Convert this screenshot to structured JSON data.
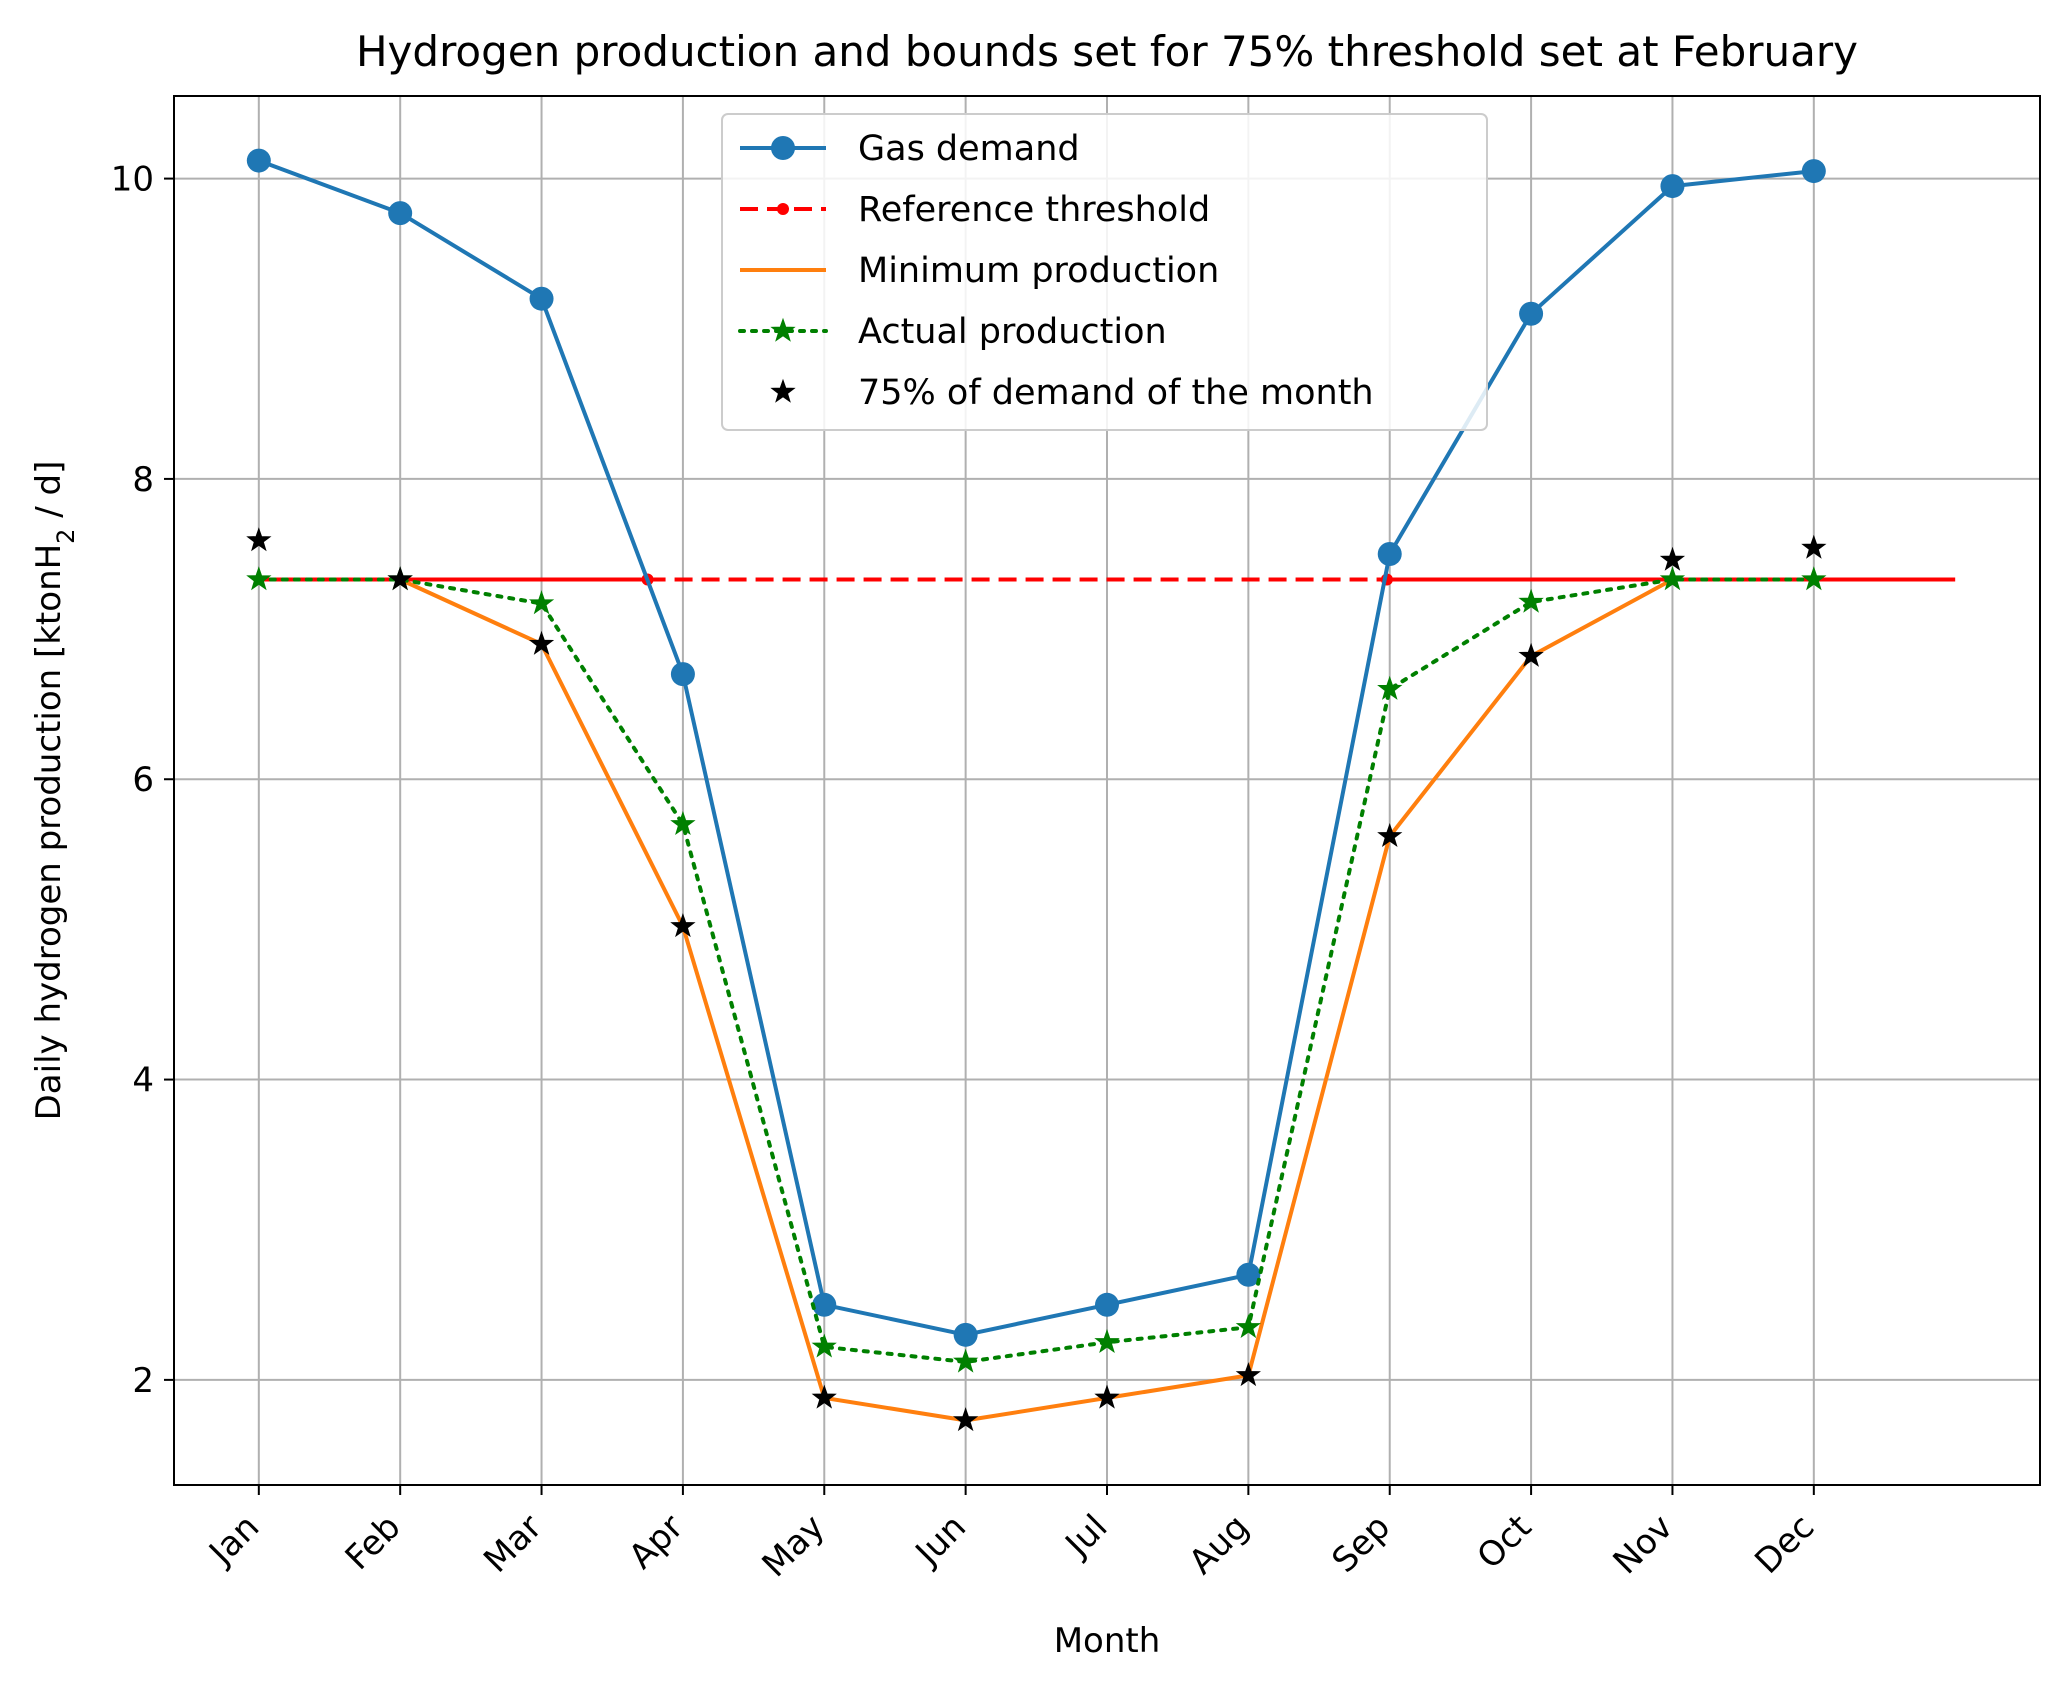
{
  "chart_data": {
    "type": "line",
    "title": "Hydrogen production and bounds set for 75% threshold set at February",
    "xlabel": "Month",
    "ylabel": {
      "prefix": "Daily hydrogen production [ktonH",
      "subscript": "2",
      "suffix": " / d]"
    },
    "categories": [
      "Jan",
      "Feb",
      "Mar",
      "Apr",
      "May",
      "Jun",
      "Jul",
      "Aug",
      "Sep",
      "Oct",
      "Nov",
      "Dec"
    ],
    "xlim": [
      -0.6,
      12.6
    ],
    "ylim": [
      1.3,
      10.55
    ],
    "yticks": [
      2,
      4,
      6,
      8,
      10
    ],
    "grid": true,
    "legend_position": "upper center",
    "threshold": 7.33,
    "series": [
      {
        "name": "Gas demand",
        "color": "#1f77b4",
        "style": "solid-circle",
        "x": [
          0,
          1,
          2,
          3,
          4,
          5,
          6,
          7,
          8,
          9,
          10,
          11
        ],
        "values": [
          10.12,
          9.77,
          9.2,
          6.7,
          2.5,
          2.3,
          2.5,
          2.7,
          7.5,
          9.1,
          9.95,
          10.05
        ]
      },
      {
        "name": "Reference threshold",
        "color": "#ff0000",
        "style": "dashed-dot",
        "segments": [
          {
            "from": 0,
            "to": 1,
            "dashed": false
          },
          {
            "from": 1,
            "to": 2.75,
            "dashed": false
          },
          {
            "from": 2.75,
            "to": 7.98,
            "dashed": true
          },
          {
            "from": 7.98,
            "to": 12,
            "dashed": false
          }
        ],
        "x": [
          2.75,
          7.98
        ],
        "values": [
          7.33,
          7.33
        ]
      },
      {
        "name": "Minimum production",
        "color": "#ff7f0e",
        "style": "solid",
        "x": [
          0,
          1,
          2,
          3,
          4,
          5,
          6,
          7,
          8,
          9,
          10,
          11
        ],
        "values": [
          7.33,
          7.33,
          6.9,
          5.02,
          1.88,
          1.73,
          1.88,
          2.03,
          5.62,
          6.82,
          7.33,
          7.33
        ]
      },
      {
        "name": "Actual production",
        "color": "#008000",
        "style": "dotted-star",
        "x": [
          0,
          1,
          2,
          3,
          4,
          5,
          6,
          7,
          8,
          9,
          10,
          11
        ],
        "values": [
          7.33,
          7.33,
          7.17,
          5.7,
          2.22,
          2.12,
          2.25,
          2.35,
          6.6,
          7.18,
          7.33,
          7.33
        ]
      },
      {
        "name": "75% of demand of the month",
        "color": "#000000",
        "style": "star",
        "x": [
          0,
          1,
          2,
          3,
          4,
          5,
          6,
          7,
          8,
          9,
          10,
          11
        ],
        "values": [
          7.59,
          7.33,
          6.9,
          5.02,
          1.88,
          1.73,
          1.88,
          2.03,
          5.62,
          6.82,
          7.46,
          7.54
        ]
      }
    ]
  }
}
